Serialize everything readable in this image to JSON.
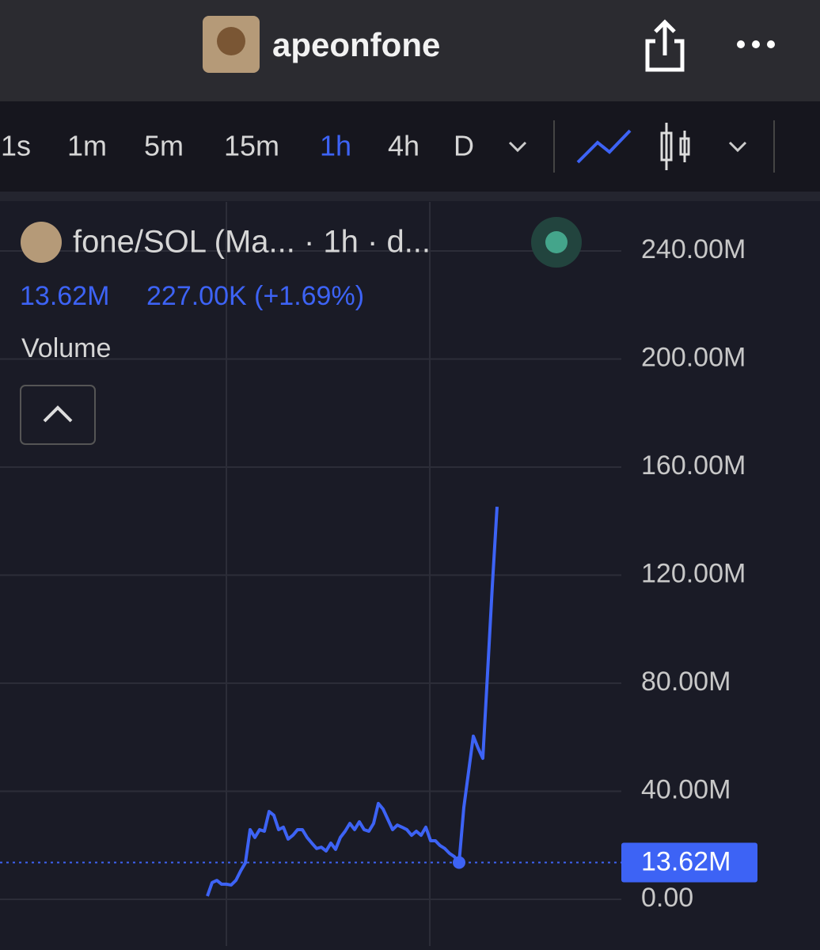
{
  "header": {
    "title": "apeonfone"
  },
  "timeframes": [
    "1s",
    "1m",
    "5m",
    "15m",
    "1h",
    "4h",
    "D"
  ],
  "legend": {
    "symbol": "fone/SOL (Ma... · 1h · d...",
    "last": "13.62M",
    "change": "227.00K (+1.69%)",
    "indicator": "Volume"
  },
  "chart_data": {
    "type": "line",
    "ylim": [
      -17.29,
      258.17
    ],
    "yticks": [
      {
        "value": 0,
        "label": "0.00"
      },
      {
        "value": 40,
        "label": "40.00M"
      },
      {
        "value": 80,
        "label": "80.00M"
      },
      {
        "value": 120,
        "label": "120.00M"
      },
      {
        "value": 160,
        "label": "160.00M"
      },
      {
        "value": 200,
        "label": "200.00M"
      },
      {
        "value": 240,
        "label": "240.00M"
      }
    ],
    "grid": true,
    "series": [
      {
        "color": "#3d63f5",
        "values": [
          1.2,
          6.2,
          7.0,
          5.6,
          5.6,
          5.3,
          7.0,
          10.5,
          13.5,
          25.8,
          22.9,
          25.8,
          25.2,
          32.5,
          31.1,
          25.8,
          26.7,
          22.3,
          23.7,
          25.8,
          25.8,
          22.9,
          20.8,
          18.8,
          19.3,
          17.9,
          20.8,
          18.5,
          22.9,
          25.2,
          28.1,
          25.8,
          28.7,
          25.8,
          25.2,
          28.1,
          35.5,
          33.4,
          29.6,
          25.8,
          27.5,
          26.7,
          25.8,
          23.7,
          25.2,
          23.7,
          26.7,
          21.7,
          21.7,
          19.9,
          18.8,
          17.0,
          15.8,
          13.62,
          34.0,
          47.2,
          60.4,
          56.0,
          52.2,
          83.8,
          116.0,
          145.3
        ]
      }
    ]
  }
}
